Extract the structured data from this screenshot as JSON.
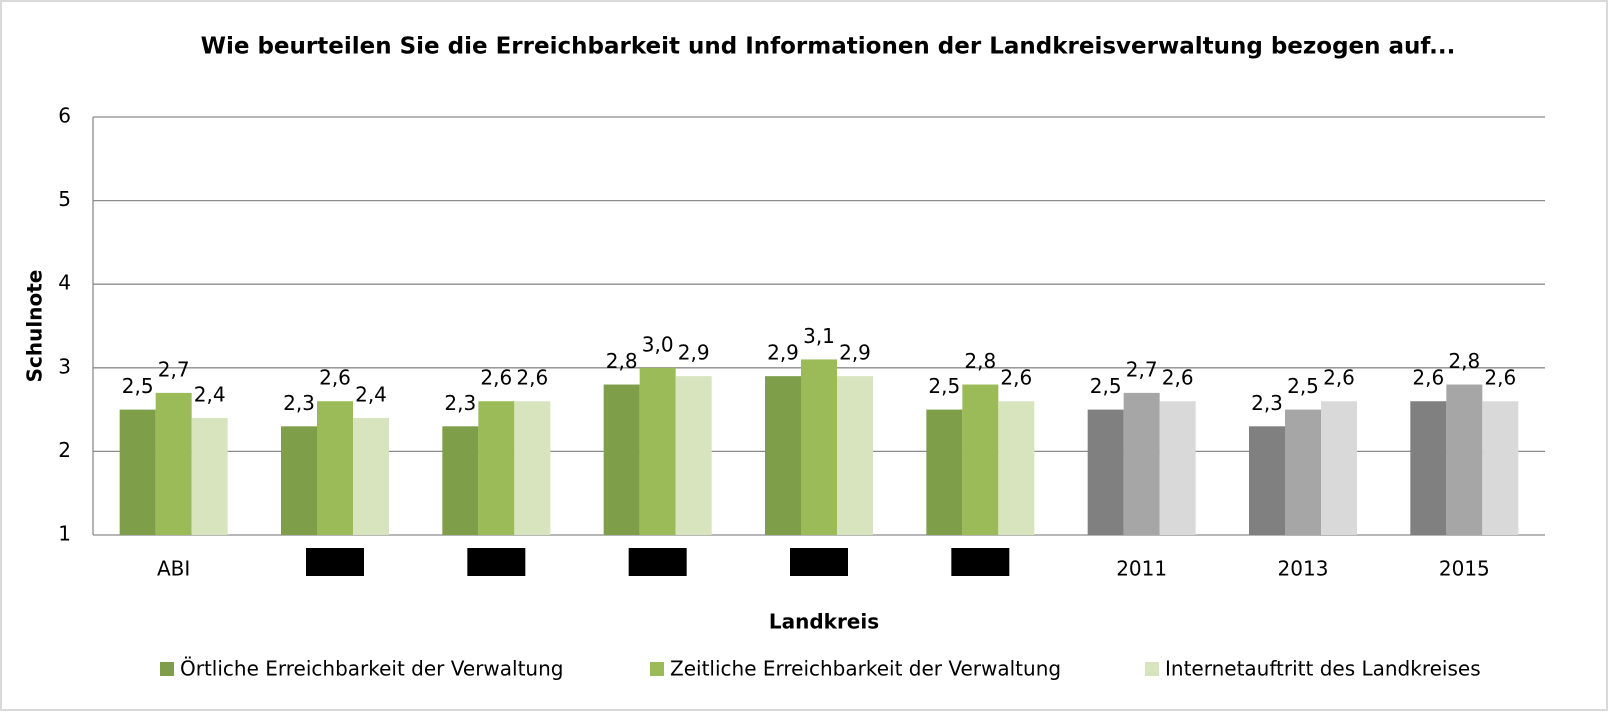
{
  "chart_data": {
    "type": "bar",
    "title": "Wie beurteilen Sie die Erreichbarkeit und Informationen der Landkreisverwaltung bezogen auf...",
    "x_label": "Landkreis",
    "y_label": "Schulnote",
    "categories": [
      "ABI",
      null,
      null,
      null,
      null,
      null,
      "2011",
      "2013",
      "2015"
    ],
    "series": [
      {
        "name": "Örtliche Erreichbarkeit der Verwaltung",
        "colors": [
          "#7f9e4a",
          "#7f9e4a",
          "#7f9e4a",
          "#7f9e4a",
          "#7f9e4a",
          "#7f9e4a",
          "#808080",
          "#808080",
          "#808080"
        ],
        "values": [
          2.5,
          2.3,
          2.3,
          2.8,
          2.9,
          2.5,
          2.5,
          2.3,
          2.6
        ],
        "value_labels": [
          "2,5",
          "2,3",
          "2,3",
          "2,8",
          "2,9",
          "2,5",
          "2,5",
          "2,3",
          "2,6"
        ]
      },
      {
        "name": "Zeitliche Erreichbarkeit der Verwaltung",
        "colors": [
          "#9bbb59",
          "#9bbb59",
          "#9bbb59",
          "#9bbb59",
          "#9bbb59",
          "#9bbb59",
          "#a6a6a6",
          "#a6a6a6",
          "#a6a6a6"
        ],
        "values": [
          2.7,
          2.6,
          2.6,
          3.0,
          3.1,
          2.8,
          2.7,
          2.5,
          2.8
        ],
        "value_labels": [
          "2,7",
          "2,6",
          "2,6",
          "3,0",
          "3,1",
          "2,8",
          "2,7",
          "2,5",
          "2,8"
        ]
      },
      {
        "name": "Internetauftritt des Landkreises",
        "colors": [
          "#d7e4bd",
          "#d7e4bd",
          "#d7e4bd",
          "#d7e4bd",
          "#d7e4bd",
          "#d7e4bd",
          "#d9d9d9",
          "#d9d9d9",
          "#d9d9d9"
        ],
        "values": [
          2.4,
          2.4,
          2.6,
          2.9,
          2.9,
          2.6,
          2.6,
          2.6,
          2.6
        ],
        "value_labels": [
          "2,4",
          "2,4",
          "2,6",
          "2,9",
          "2,9",
          "2,6",
          "2,6",
          "2,6",
          "2,6"
        ]
      }
    ],
    "ylim": [
      1,
      6
    ],
    "yticks": [
      1,
      2,
      3,
      4,
      5,
      6
    ],
    "grid": true,
    "legend": "bottom"
  }
}
